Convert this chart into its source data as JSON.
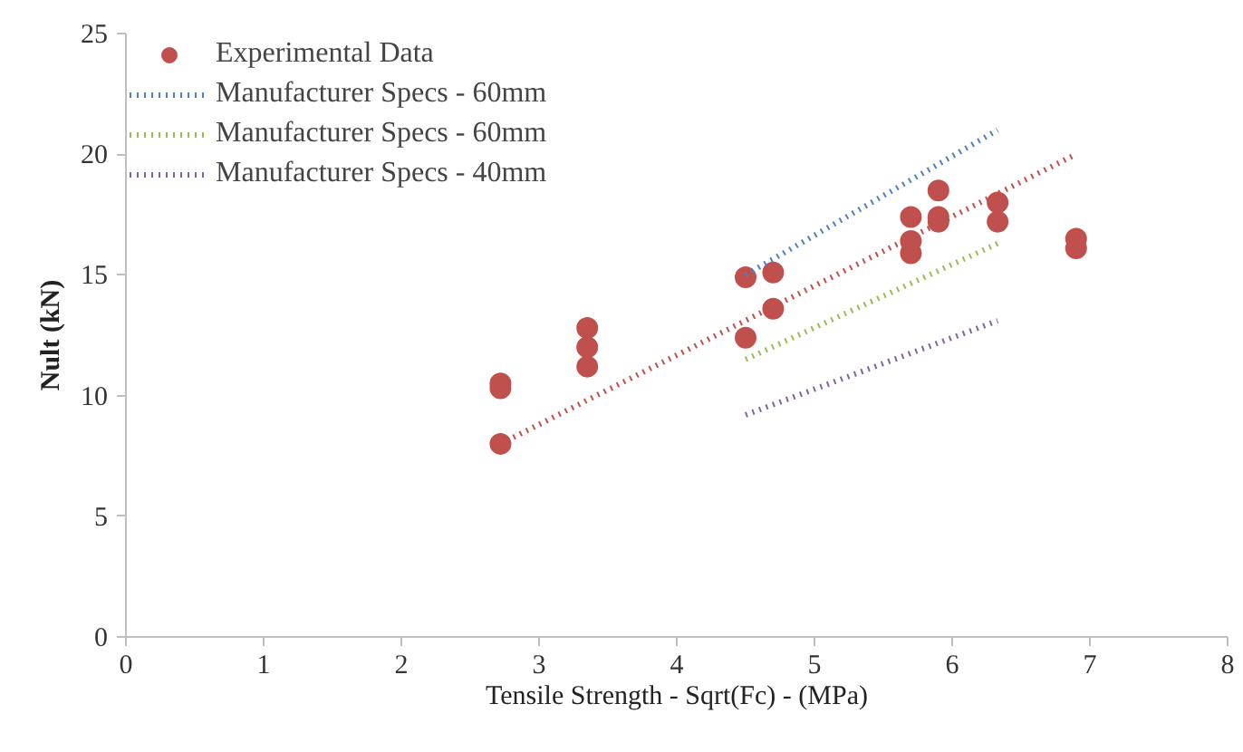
{
  "chart_data": {
    "type": "scatter",
    "xlabel": "Tensile Strength - Sqrt(Fc) - (MPa)",
    "ylabel": "Nult (kN)",
    "xlim": [
      0,
      8
    ],
    "ylim": [
      0,
      25
    ],
    "xticks": [
      0,
      1,
      2,
      3,
      4,
      5,
      6,
      7,
      8
    ],
    "yticks": [
      0,
      5,
      10,
      15,
      20,
      25
    ],
    "grid": false,
    "legend": "top left",
    "line_style": "dotted",
    "series": [
      {
        "name": "Experimental Data",
        "color": "#c0504d",
        "x": [
          2.72,
          2.72,
          2.72,
          3.35,
          3.35,
          3.35,
          4.5,
          4.5,
          4.7,
          4.7,
          5.7,
          5.7,
          5.7,
          5.9,
          5.9,
          5.9,
          6.33,
          6.33,
          6.9,
          6.9
        ],
        "values": [
          10.5,
          10.3,
          8.0,
          12.8,
          12.0,
          11.2,
          14.9,
          12.4,
          15.1,
          13.6,
          17.4,
          16.4,
          15.9,
          18.5,
          17.4,
          17.2,
          18.0,
          17.2,
          16.5,
          16.1
        ]
      },
      {
        "name": "Manufacturer Specs - 60mm",
        "type": "line",
        "color": "#4f81bd",
        "x": [
          4.5,
          6.33
        ],
        "values": [
          15.0,
          21.0
        ]
      },
      {
        "name": "Manufacturer Specs - 60mm",
        "type": "line",
        "color": "#9bbb59",
        "x": [
          4.5,
          6.33
        ],
        "values": [
          11.5,
          16.3
        ]
      },
      {
        "name": "Manufacturer Specs - 40mm",
        "type": "line",
        "color": "#8064a2",
        "x": [
          4.5,
          6.33
        ],
        "values": [
          9.2,
          13.1
        ]
      },
      {
        "type": "line",
        "color": "#c0504d",
        "x": [
          2.72,
          6.9
        ],
        "values": [
          8.0,
          20.0
        ]
      }
    ]
  }
}
